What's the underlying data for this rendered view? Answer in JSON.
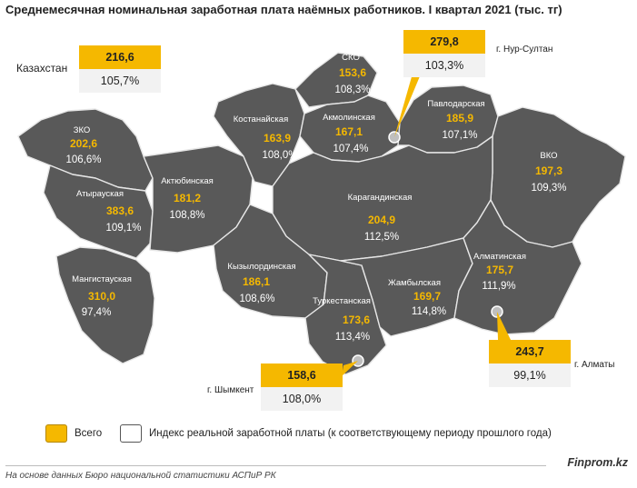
{
  "title": "Среднемесячная номинальная заработная плата наёмных работников. I квартал 2021  (тыс. тг)",
  "kazakhstan": {
    "label": "Казахстан",
    "salary": "216,6",
    "index": "105,7%"
  },
  "regions": [
    {
      "id": "zko",
      "name": "ЗКО",
      "salary": "202,6",
      "index": "106,6%"
    },
    {
      "id": "atyrau",
      "name": "Атырауская",
      "salary": "383,6",
      "index": "109,1%"
    },
    {
      "id": "mangystau",
      "name": "Мангистауская",
      "salary": "310,0",
      "index": "97,4%"
    },
    {
      "id": "aktobe",
      "name": "Актюбинская",
      "salary": "181,2",
      "index": "108,8%"
    },
    {
      "id": "kostanay",
      "name": "Костанайская",
      "salary": "163,9",
      "index": "108,0%"
    },
    {
      "id": "sko",
      "name": "СКО",
      "salary": "153,6",
      "index": "108,3%"
    },
    {
      "id": "akmola",
      "name": "Акмолинская",
      "salary": "167,1",
      "index": "107,4%"
    },
    {
      "id": "pavlodar",
      "name": "Павлодарская",
      "salary": "185,9",
      "index": "107,1%"
    },
    {
      "id": "vko",
      "name": "ВКО",
      "salary": "197,3",
      "index": "109,3%"
    },
    {
      "id": "karaganda",
      "name": "Карагандинская",
      "salary": "204,9",
      "index": "112,5%"
    },
    {
      "id": "kyzylorda",
      "name": "Кызылординская",
      "salary": "186,1",
      "index": "108,6%"
    },
    {
      "id": "turkestan",
      "name": "Туркестанская",
      "salary": "173,6",
      "index": "113,4%"
    },
    {
      "id": "zhambyl",
      "name": "Жамбылская",
      "salary": "169,7",
      "index": "114,8%"
    },
    {
      "id": "almaty_obl",
      "name": "Алматинская",
      "salary": "175,7",
      "index": "111,9%"
    }
  ],
  "cities": [
    {
      "id": "nursultan",
      "label": "г. Нур-Султан",
      "salary": "279,8",
      "index": "103,3%"
    },
    {
      "id": "almaty",
      "label": "г. Алматы",
      "salary": "243,7",
      "index": "99,1%"
    },
    {
      "id": "shymkent",
      "label": "г. Шымкент",
      "salary": "158,6",
      "index": "108,0%"
    }
  ],
  "legend": {
    "total": "Всего",
    "real_index": "Индекс  реальной заработной платы (к соответствующему периоду прошлого года)"
  },
  "brand": "Finprom.kz",
  "source": "На основе данных Бюро национальной  статистики АСПиР РК",
  "colors": {
    "salary": "#f5b800",
    "region_fill": "#595959",
    "index_box": "#f2f2f2"
  }
}
